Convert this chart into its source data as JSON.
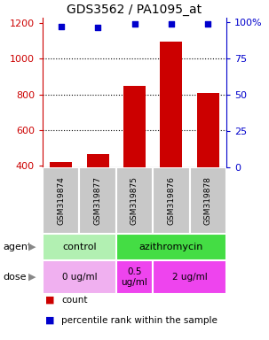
{
  "title": "GDS3562 / PA1095_at",
  "samples": [
    "GSM319874",
    "GSM319877",
    "GSM319875",
    "GSM319876",
    "GSM319878"
  ],
  "counts": [
    420,
    465,
    845,
    1095,
    810
  ],
  "percentiles": [
    97,
    96,
    98.5,
    99,
    98.5
  ],
  "ylim_left": [
    390,
    1230
  ],
  "ylim_right": [
    0,
    103
  ],
  "yticks_left": [
    400,
    600,
    800,
    1000,
    1200
  ],
  "yticks_right": [
    0,
    25,
    50,
    75,
    100
  ],
  "bar_color": "#cc0000",
  "dot_color": "#0000cc",
  "agent_groups": [
    {
      "label": "control",
      "start": 0,
      "end": 2,
      "color": "#b2f0b2"
    },
    {
      "label": "azithromycin",
      "start": 2,
      "end": 5,
      "color": "#44dd44"
    }
  ],
  "dose_groups": [
    {
      "label": "0 ug/ml",
      "start": 0,
      "end": 2,
      "color": "#f0b0f0"
    },
    {
      "label": "0.5\nug/ml",
      "start": 2,
      "end": 3,
      "color": "#ee44ee"
    },
    {
      "label": "2 ug/ml",
      "start": 3,
      "end": 5,
      "color": "#ee44ee"
    }
  ],
  "legend_bar_label": "count",
  "legend_dot_label": "percentile rank within the sample",
  "left_axis_color": "#cc0000",
  "right_axis_color": "#0000cc",
  "sample_box_color": "#c8c8c8"
}
